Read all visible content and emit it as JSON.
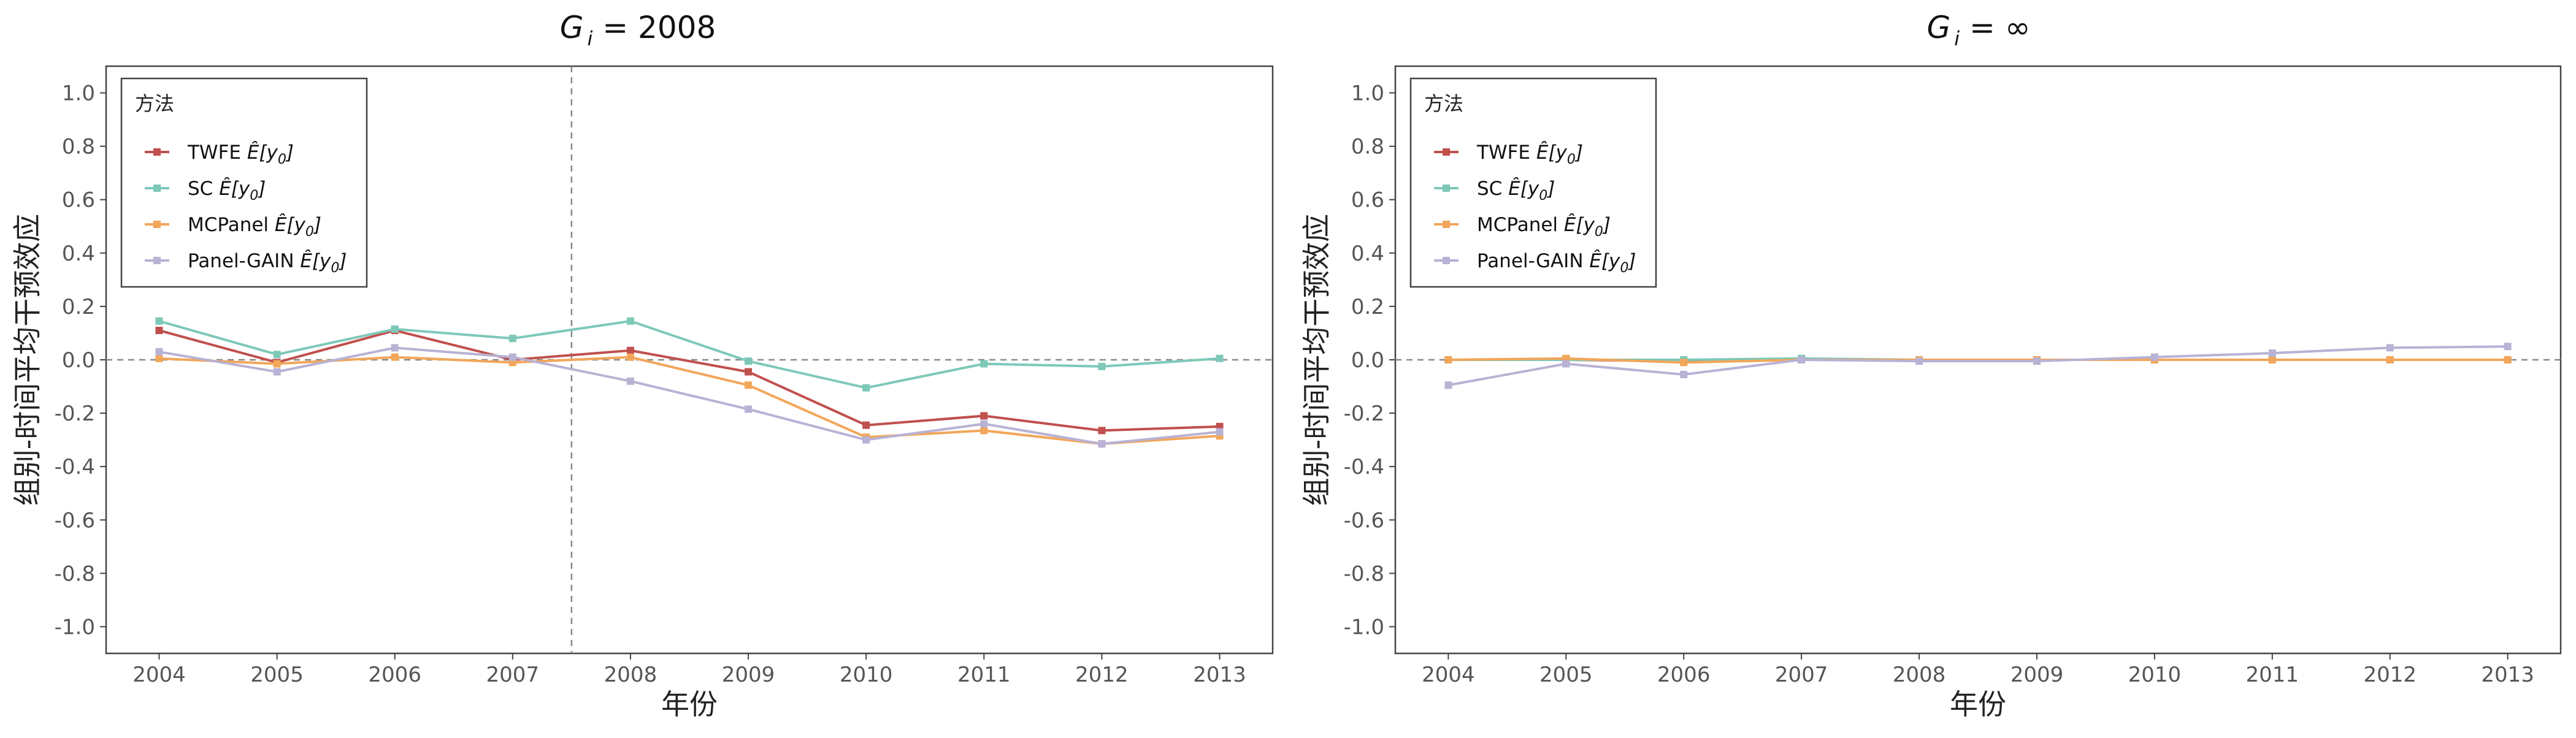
{
  "y_axis_label": "组别-时间平均干预效应",
  "x_axis_label": "年份",
  "legend_title": "方法",
  "colors": {
    "TWFE": "#c0504d",
    "SC": "#7ec8b8",
    "MCPanel": "#f2a65a",
    "Panel-GAIN": "#b8b2d4"
  },
  "chart_data": [
    {
      "type": "line",
      "title": "G i = 2008",
      "title_main": "G",
      "title_sub": "i",
      "title_rest": " = 2008",
      "xlabel": "年份",
      "ylabel": "组别-时间平均干预效应",
      "x": [
        2004,
        2005,
        2006,
        2007,
        2008,
        2009,
        2010,
        2011,
        2012,
        2013
      ],
      "ylim": [
        -1.0,
        1.0
      ],
      "y_ticks": [
        "1.0",
        "0.8",
        "0.6",
        "0.4",
        "0.2",
        "0.0",
        "-0.2",
        "-0.4",
        "-0.6",
        "-0.8",
        "-1.0"
      ],
      "reference_hline": 0.0,
      "reference_vline": 2007.5,
      "legend_position": "top-left",
      "grid": false,
      "series": [
        {
          "name": "TWFE",
          "values": [
            0.11,
            -0.01,
            0.11,
            0.0,
            0.035,
            -0.045,
            -0.245,
            -0.21,
            -0.265,
            -0.25
          ]
        },
        {
          "name": "SC",
          "values": [
            0.145,
            0.02,
            0.115,
            0.08,
            0.145,
            -0.005,
            -0.105,
            -0.015,
            -0.025,
            0.005
          ]
        },
        {
          "name": "MCPanel",
          "values": [
            0.005,
            -0.015,
            0.01,
            -0.01,
            0.01,
            -0.095,
            -0.29,
            -0.265,
            -0.315,
            -0.285
          ]
        },
        {
          "name": "Panel-GAIN",
          "values": [
            0.03,
            -0.045,
            0.045,
            0.01,
            -0.08,
            -0.185,
            -0.3,
            -0.24,
            -0.315,
            -0.27
          ]
        }
      ]
    },
    {
      "type": "line",
      "title": "G i = ∞",
      "title_main": "G",
      "title_sub": "i",
      "title_rest": " = ∞",
      "xlabel": "年份",
      "ylabel": "组别-时间平均干预效应",
      "x": [
        2004,
        2005,
        2006,
        2007,
        2008,
        2009,
        2010,
        2011,
        2012,
        2013
      ],
      "ylim": [
        -1.0,
        1.0
      ],
      "y_ticks": [
        "1.0",
        "0.8",
        "0.6",
        "0.4",
        "0.2",
        "0.0",
        "-0.2",
        "-0.4",
        "-0.6",
        "-0.8",
        "-1.0"
      ],
      "reference_hline": 0.0,
      "legend_position": "top-left",
      "grid": false,
      "series": [
        {
          "name": "TWFE",
          "values": [
            0.0,
            0.0,
            -0.005,
            0.0,
            0.0,
            0.0,
            0.0,
            0.0,
            0.0,
            0.0
          ]
        },
        {
          "name": "SC",
          "values": [
            0.0,
            0.0,
            0.0,
            0.005,
            0.0,
            0.0,
            0.0,
            0.0,
            0.0,
            0.0
          ]
        },
        {
          "name": "MCPanel",
          "values": [
            0.0,
            0.005,
            -0.01,
            0.0,
            0.0,
            0.0,
            0.0,
            0.0,
            0.0,
            0.0
          ]
        },
        {
          "name": "Panel-GAIN",
          "values": [
            -0.095,
            -0.015,
            -0.055,
            0.0,
            -0.005,
            -0.005,
            0.01,
            0.025,
            0.045,
            0.05
          ]
        }
      ]
    }
  ]
}
